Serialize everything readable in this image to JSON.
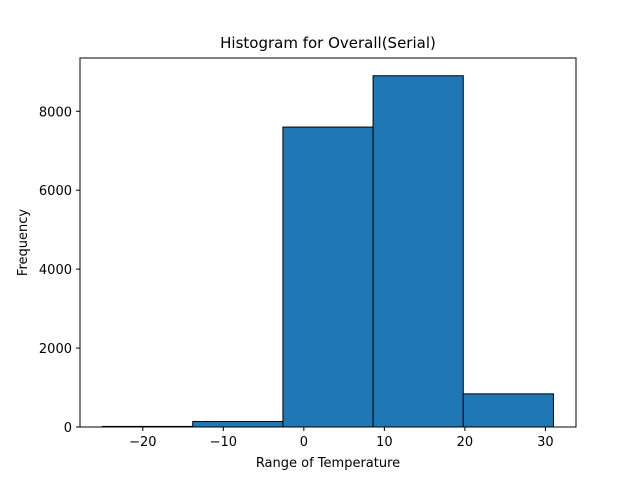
{
  "chart_data": {
    "type": "bar",
    "title": "Histogram for Overall(Serial)",
    "xlabel": "Range of Temperature",
    "ylabel": "Frequency",
    "xlim": [
      -27.8,
      33.8
    ],
    "ylim": [
      0,
      9350
    ],
    "xticks": [
      -20,
      -10,
      0,
      10,
      20,
      30
    ],
    "xtick_labels": [
      "−20",
      "−10",
      "0",
      "10",
      "20",
      "30"
    ],
    "yticks": [
      0,
      2000,
      4000,
      6000,
      8000
    ],
    "ytick_labels": [
      "0",
      "2000",
      "4000",
      "6000",
      "8000"
    ],
    "grid": false,
    "bin_edges": [
      -25.0,
      -13.8,
      -2.6,
      8.6,
      19.8,
      31.0
    ],
    "values": [
      15,
      140,
      7600,
      8900,
      840
    ],
    "colors": {
      "bar_fill": "#1f77b4",
      "bar_edge": "#000000",
      "axes": "#000000",
      "background": "#ffffff"
    }
  }
}
